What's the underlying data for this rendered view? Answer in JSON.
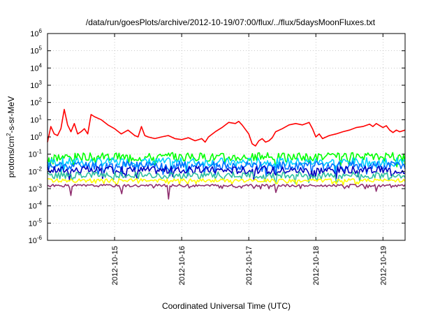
{
  "chart_data": {
    "type": "line",
    "title": "/data/run/goesPlots/archive/2012-10-19/07:00/flux/../flux/5daysMoonFluxes.txt",
    "xlabel": "Coordinated Universal Time (UTC)",
    "ylabel": "protons/cm2-s-sr-MeV",
    "yscale": "log",
    "ylim": [
      1e-06,
      1000000.0
    ],
    "xlim_days": [
      14.0,
      19.33
    ],
    "x_ticks": [
      {
        "label": "2012-10-15",
        "value": 15
      },
      {
        "label": "2012-10-16",
        "value": 16
      },
      {
        "label": "2012-10-17",
        "value": 17
      },
      {
        "label": "2012-10-18",
        "value": 18
      },
      {
        "label": "2012-10-19",
        "value": 19
      }
    ],
    "y_ticks": [
      {
        "exp": "6",
        "value": 1000000.0
      },
      {
        "exp": "5",
        "value": 100000.0
      },
      {
        "exp": "4",
        "value": 10000.0
      },
      {
        "exp": "3",
        "value": 1000.0
      },
      {
        "exp": "2",
        "value": 100.0
      },
      {
        "exp": "1",
        "value": 10
      },
      {
        "exp": "0",
        "value": 1
      },
      {
        "exp": "-1",
        "value": 0.1
      },
      {
        "exp": "-2",
        "value": 0.01
      },
      {
        "exp": "-3",
        "value": 0.001
      },
      {
        "exp": "-4",
        "value": 0.0001
      },
      {
        "exp": "-5",
        "value": 1e-05
      },
      {
        "exp": "-6",
        "value": 1e-06
      }
    ],
    "grid": true,
    "series": [
      {
        "color": "#ff0000",
        "points": [
          [
            14.0,
            0.5
          ],
          [
            14.05,
            4.0
          ],
          [
            14.1,
            1.5
          ],
          [
            14.15,
            1.2
          ],
          [
            14.2,
            3.0
          ],
          [
            14.25,
            40
          ],
          [
            14.3,
            5.0
          ],
          [
            14.35,
            2.0
          ],
          [
            14.4,
            6.0
          ],
          [
            14.45,
            1.5
          ],
          [
            14.5,
            2.0
          ],
          [
            14.55,
            3.0
          ],
          [
            14.6,
            1.5
          ],
          [
            14.65,
            20
          ],
          [
            14.7,
            15
          ],
          [
            14.8,
            10
          ],
          [
            14.9,
            5.0
          ],
          [
            15.0,
            3.0
          ],
          [
            15.1,
            1.5
          ],
          [
            15.2,
            2.5
          ],
          [
            15.3,
            1.2
          ],
          [
            15.35,
            1.0
          ],
          [
            15.4,
            4.0
          ],
          [
            15.45,
            1.2
          ],
          [
            15.5,
            1.0
          ],
          [
            15.6,
            0.8
          ],
          [
            15.7,
            1.0
          ],
          [
            15.8,
            1.2
          ],
          [
            15.9,
            0.8
          ],
          [
            16.0,
            0.7
          ],
          [
            16.1,
            0.9
          ],
          [
            16.2,
            0.6
          ],
          [
            16.3,
            0.8
          ],
          [
            16.35,
            0.5
          ],
          [
            16.4,
            1.0
          ],
          [
            16.5,
            2.0
          ],
          [
            16.6,
            3.5
          ],
          [
            16.7,
            7.0
          ],
          [
            16.8,
            6.0
          ],
          [
            16.85,
            8.0
          ],
          [
            16.9,
            5.0
          ],
          [
            17.0,
            1.5
          ],
          [
            17.05,
            0.4
          ],
          [
            17.1,
            0.3
          ],
          [
            17.15,
            0.6
          ],
          [
            17.2,
            0.8
          ],
          [
            17.25,
            0.5
          ],
          [
            17.3,
            0.6
          ],
          [
            17.35,
            0.9
          ],
          [
            17.4,
            2.0
          ],
          [
            17.5,
            3.0
          ],
          [
            17.6,
            5.0
          ],
          [
            17.7,
            6.0
          ],
          [
            17.8,
            5.0
          ],
          [
            17.9,
            7.0
          ],
          [
            17.95,
            3.0
          ],
          [
            18.0,
            1.0
          ],
          [
            18.05,
            1.5
          ],
          [
            18.1,
            0.8
          ],
          [
            18.2,
            1.2
          ],
          [
            18.3,
            1.5
          ],
          [
            18.4,
            2.0
          ],
          [
            18.5,
            2.5
          ],
          [
            18.6,
            3.5
          ],
          [
            18.7,
            4.0
          ],
          [
            18.8,
            5.5
          ],
          [
            18.85,
            4.0
          ],
          [
            18.9,
            6.0
          ],
          [
            19.0,
            3.5
          ],
          [
            19.05,
            4.5
          ],
          [
            19.1,
            2.5
          ],
          [
            19.15,
            1.8
          ],
          [
            19.2,
            2.5
          ],
          [
            19.25,
            2.0
          ],
          [
            19.33,
            2.5
          ]
        ]
      },
      {
        "color": "#00ff00",
        "base": 0.07,
        "spread": 0.5,
        "seed": 3
      },
      {
        "color": "#00d0ff",
        "base": 0.035,
        "spread": 0.5,
        "seed": 7
      },
      {
        "color": "#0070ff",
        "base": 0.022,
        "spread": 0.5,
        "seed": 11
      },
      {
        "color": "#0000c0",
        "base": 0.012,
        "spread": 0.45,
        "seed": 17
      },
      {
        "color": "#30c0a0",
        "base": 0.006,
        "spread": 0.4,
        "seed": 23
      },
      {
        "color": "#ffff00",
        "base": 0.003,
        "spread": 0.2,
        "seed": 29
      },
      {
        "color": "#903070",
        "base": 0.0015,
        "spread": 0.15,
        "seed": 31,
        "dips": [
          [
            14.35,
            0.0004
          ],
          [
            15.1,
            0.0005
          ],
          [
            15.8,
            0.00025
          ],
          [
            17.4,
            0.0006
          ],
          [
            18.9,
            0.0007
          ]
        ]
      }
    ]
  }
}
